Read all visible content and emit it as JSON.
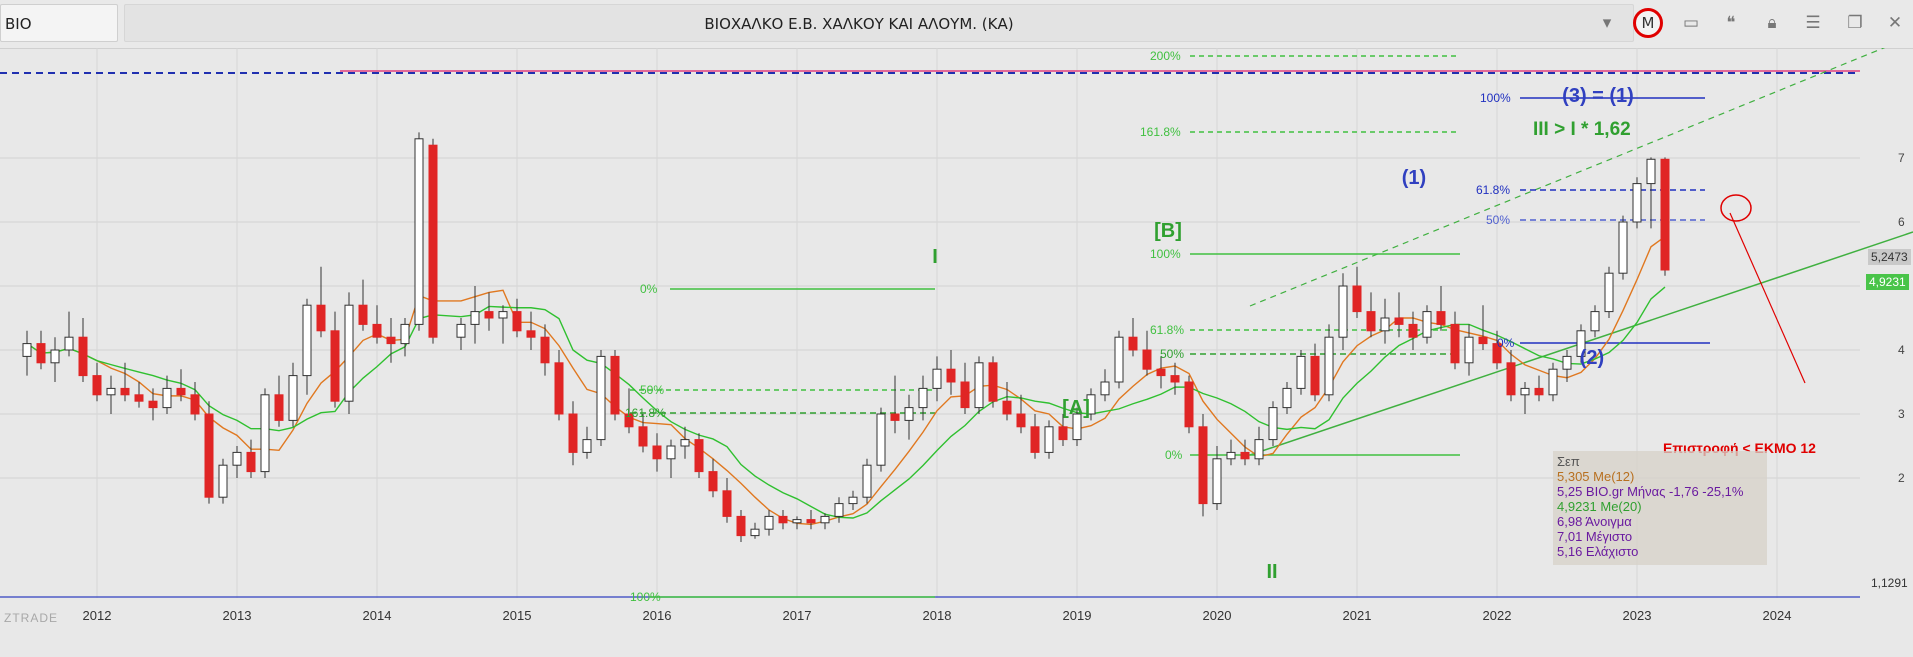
{
  "window": {
    "symbol": "BIO",
    "title": "ΒΙΟΧΑΛΚΟ Ε.Β. ΧΑΛΚΟΥ ΚΑΙ ΑΛΟΥΜ. (ΚΑ)",
    "icons": [
      "chevron-down-icon",
      "m-icon",
      "panel-icon",
      "quote-icon",
      "lock-icon",
      "menu-icon",
      "restore-icon",
      "close-icon"
    ],
    "m_label": "M",
    "watermark": "ZTRADE"
  },
  "chart_data": {
    "type": "candlestick",
    "interval": "monthly",
    "x_axis": {
      "range": [
        "2011-06",
        "2024-12"
      ],
      "ticks": [
        "2012",
        "2013",
        "2014",
        "2015",
        "2016",
        "2017",
        "2018",
        "2019",
        "2020",
        "2021",
        "2022",
        "2023",
        "2024"
      ]
    },
    "y_axis": {
      "range": [
        0.9,
        7.8
      ],
      "ticks": [
        "2",
        "3",
        "4",
        "5",
        "6",
        "7"
      ]
    },
    "colors": {
      "up": "#ffffff",
      "down": "#e02525",
      "ma12": "#e07820",
      "ma20": "#30c030",
      "annotation_blue": "#3030c0",
      "annotation_green": "#30a030",
      "accent_red": "#e00000"
    },
    "series": [
      {
        "name": "Me(12)",
        "last_value": "5,305"
      },
      {
        "name": "Me(20)",
        "last_value": "4,9231"
      }
    ],
    "candles": [
      [
        2011.5,
        3.9,
        4.3,
        3.6,
        4.1
      ],
      [
        2011.6,
        4.1,
        4.3,
        3.7,
        3.8
      ],
      [
        2011.7,
        3.8,
        4.2,
        3.5,
        4.0
      ],
      [
        2011.8,
        4.0,
        4.6,
        3.9,
        4.2
      ],
      [
        2011.9,
        4.2,
        4.5,
        3.5,
        3.6
      ],
      [
        2012.0,
        3.6,
        3.8,
        3.2,
        3.3
      ],
      [
        2012.1,
        3.3,
        3.6,
        3.0,
        3.4
      ],
      [
        2012.2,
        3.4,
        3.8,
        3.2,
        3.3
      ],
      [
        2012.3,
        3.3,
        3.5,
        3.1,
        3.2
      ],
      [
        2012.4,
        3.2,
        3.4,
        2.9,
        3.1
      ],
      [
        2012.5,
        3.1,
        3.6,
        3.0,
        3.4
      ],
      [
        2012.6,
        3.4,
        3.7,
        3.2,
        3.3
      ],
      [
        2012.7,
        3.3,
        3.5,
        2.9,
        3.0
      ],
      [
        2012.8,
        3.0,
        3.2,
        1.6,
        1.7
      ],
      [
        2012.9,
        1.7,
        2.3,
        1.6,
        2.2
      ],
      [
        2013.0,
        2.2,
        2.5,
        2.0,
        2.4
      ],
      [
        2013.1,
        2.4,
        2.6,
        2.0,
        2.1
      ],
      [
        2013.2,
        2.1,
        3.4,
        2.0,
        3.3
      ],
      [
        2013.3,
        3.3,
        3.6,
        2.8,
        2.9
      ],
      [
        2013.4,
        2.9,
        3.8,
        2.8,
        3.6
      ],
      [
        2013.5,
        3.6,
        4.8,
        3.3,
        4.7
      ],
      [
        2013.6,
        4.7,
        5.3,
        4.2,
        4.3
      ],
      [
        2013.7,
        4.3,
        4.6,
        3.1,
        3.2
      ],
      [
        2013.8,
        3.2,
        4.9,
        3.0,
        4.7
      ],
      [
        2013.9,
        4.7,
        5.1,
        4.3,
        4.4
      ],
      [
        2014.0,
        4.4,
        4.7,
        4.1,
        4.2
      ],
      [
        2014.1,
        4.2,
        4.5,
        3.8,
        4.1
      ],
      [
        2014.2,
        4.1,
        4.5,
        3.9,
        4.4
      ],
      [
        2014.3,
        4.4,
        7.4,
        4.3,
        7.3
      ],
      [
        2014.4,
        7.2,
        7.3,
        4.1,
        4.2
      ],
      [
        2014.6,
        4.2,
        4.5,
        4.0,
        4.4
      ],
      [
        2014.7,
        4.4,
        5.0,
        4.1,
        4.6
      ],
      [
        2014.8,
        4.6,
        4.9,
        4.3,
        4.5
      ],
      [
        2014.9,
        4.5,
        4.7,
        4.1,
        4.6
      ],
      [
        2015.0,
        4.6,
        4.8,
        4.2,
        4.3
      ],
      [
        2015.1,
        4.3,
        4.6,
        4.0,
        4.2
      ],
      [
        2015.2,
        4.2,
        4.4,
        3.6,
        3.8
      ],
      [
        2015.3,
        3.8,
        4.0,
        2.9,
        3.0
      ],
      [
        2015.4,
        3.0,
        3.2,
        2.2,
        2.4
      ],
      [
        2015.5,
        2.4,
        2.8,
        2.3,
        2.6
      ],
      [
        2015.6,
        2.6,
        4.0,
        2.5,
        3.9
      ],
      [
        2015.7,
        3.9,
        4.0,
        2.9,
        3.0
      ],
      [
        2015.8,
        3.0,
        3.4,
        2.7,
        2.8
      ],
      [
        2015.9,
        2.8,
        3.0,
        2.4,
        2.5
      ],
      [
        2016.0,
        2.5,
        2.7,
        2.1,
        2.3
      ],
      [
        2016.1,
        2.3,
        2.6,
        2.0,
        2.5
      ],
      [
        2016.2,
        2.5,
        2.8,
        2.3,
        2.6
      ],
      [
        2016.3,
        2.6,
        2.7,
        2.0,
        2.1
      ],
      [
        2016.4,
        2.1,
        2.3,
        1.7,
        1.8
      ],
      [
        2016.5,
        1.8,
        2.0,
        1.3,
        1.4
      ],
      [
        2016.6,
        1.4,
        1.5,
        1.0,
        1.1
      ],
      [
        2016.7,
        1.1,
        1.3,
        1.05,
        1.2
      ],
      [
        2016.8,
        1.2,
        1.5,
        1.1,
        1.4
      ],
      [
        2016.9,
        1.4,
        1.5,
        1.2,
        1.3
      ],
      [
        2017.0,
        1.3,
        1.4,
        1.2,
        1.35
      ],
      [
        2017.1,
        1.35,
        1.5,
        1.2,
        1.3
      ],
      [
        2017.2,
        1.3,
        1.45,
        1.2,
        1.4
      ],
      [
        2017.3,
        1.4,
        1.7,
        1.3,
        1.6
      ],
      [
        2017.4,
        1.6,
        1.8,
        1.5,
        1.7
      ],
      [
        2017.5,
        1.7,
        2.3,
        1.6,
        2.2
      ],
      [
        2017.6,
        2.2,
        3.1,
        2.1,
        3.0
      ],
      [
        2017.7,
        3.0,
        3.6,
        2.7,
        2.9
      ],
      [
        2017.8,
        2.9,
        3.3,
        2.6,
        3.1
      ],
      [
        2017.9,
        3.1,
        3.6,
        2.9,
        3.4
      ],
      [
        2018.0,
        3.4,
        3.9,
        3.2,
        3.7
      ],
      [
        2018.1,
        3.7,
        4.0,
        3.3,
        3.5
      ],
      [
        2018.2,
        3.5,
        3.8,
        3.0,
        3.1
      ],
      [
        2018.3,
        3.1,
        3.9,
        3.0,
        3.8
      ],
      [
        2018.4,
        3.8,
        3.9,
        3.1,
        3.2
      ],
      [
        2018.5,
        3.2,
        3.5,
        2.9,
        3.0
      ],
      [
        2018.6,
        3.0,
        3.3,
        2.7,
        2.8
      ],
      [
        2018.7,
        2.8,
        3.0,
        2.3,
        2.4
      ],
      [
        2018.8,
        2.4,
        2.9,
        2.3,
        2.8
      ],
      [
        2018.9,
        2.8,
        3.0,
        2.5,
        2.6
      ],
      [
        2019.0,
        2.6,
        3.1,
        2.5,
        3.0
      ],
      [
        2019.1,
        3.0,
        3.4,
        2.9,
        3.3
      ],
      [
        2019.2,
        3.3,
        3.7,
        3.2,
        3.5
      ],
      [
        2019.3,
        3.5,
        4.3,
        3.4,
        4.2
      ],
      [
        2019.4,
        4.2,
        4.5,
        3.9,
        4.0
      ],
      [
        2019.5,
        4.0,
        4.3,
        3.6,
        3.7
      ],
      [
        2019.6,
        3.7,
        3.9,
        3.4,
        3.6
      ],
      [
        2019.7,
        3.6,
        3.8,
        3.3,
        3.5
      ],
      [
        2019.8,
        3.5,
        3.6,
        2.7,
        2.8
      ],
      [
        2019.9,
        2.8,
        3.0,
        1.4,
        1.6
      ],
      [
        2020.0,
        1.6,
        2.5,
        1.5,
        2.3
      ],
      [
        2020.1,
        2.3,
        2.6,
        2.2,
        2.4
      ],
      [
        2020.2,
        2.4,
        2.6,
        2.2,
        2.3
      ],
      [
        2020.3,
        2.3,
        2.8,
        2.2,
        2.6
      ],
      [
        2020.4,
        2.6,
        3.2,
        2.5,
        3.1
      ],
      [
        2020.5,
        3.1,
        3.5,
        3.0,
        3.4
      ],
      [
        2020.6,
        3.4,
        4.0,
        3.3,
        3.9
      ],
      [
        2020.7,
        3.9,
        4.1,
        3.2,
        3.3
      ],
      [
        2020.8,
        3.3,
        4.4,
        3.2,
        4.2
      ],
      [
        2020.9,
        4.2,
        5.2,
        4.0,
        5.0
      ],
      [
        2021.0,
        5.0,
        5.3,
        4.5,
        4.6
      ],
      [
        2021.1,
        4.6,
        4.9,
        4.2,
        4.3
      ],
      [
        2021.2,
        4.3,
        4.8,
        4.1,
        4.5
      ],
      [
        2021.3,
        4.5,
        4.9,
        4.2,
        4.4
      ],
      [
        2021.4,
        4.4,
        4.6,
        4.0,
        4.2
      ],
      [
        2021.5,
        4.2,
        4.7,
        4.1,
        4.6
      ],
      [
        2021.6,
        4.6,
        5.0,
        4.3,
        4.4
      ],
      [
        2021.7,
        4.4,
        4.6,
        3.7,
        3.8
      ],
      [
        2021.8,
        3.8,
        4.4,
        3.6,
        4.2
      ],
      [
        2021.9,
        4.2,
        4.7,
        4.0,
        4.1
      ],
      [
        2022.0,
        4.1,
        4.3,
        3.7,
        3.8
      ],
      [
        2022.1,
        3.8,
        4.0,
        3.2,
        3.3
      ],
      [
        2022.2,
        3.3,
        3.5,
        3.0,
        3.4
      ],
      [
        2022.3,
        3.4,
        3.6,
        3.2,
        3.3
      ],
      [
        2022.4,
        3.3,
        3.8,
        3.2,
        3.7
      ],
      [
        2022.5,
        3.7,
        4.0,
        3.5,
        3.9
      ],
      [
        2022.6,
        3.9,
        4.4,
        3.8,
        4.3
      ],
      [
        2022.7,
        4.3,
        4.7,
        4.2,
        4.6
      ],
      [
        2022.8,
        4.6,
        5.3,
        4.5,
        5.2
      ],
      [
        2022.9,
        5.2,
        6.1,
        5.1,
        6.0
      ],
      [
        2023.0,
        6.0,
        6.7,
        5.9,
        6.6
      ],
      [
        2023.1,
        6.6,
        7.01,
        5.9,
        6.98
      ],
      [
        2023.2,
        6.98,
        7.01,
        5.16,
        5.25
      ]
    ],
    "annotations": {
      "fibonacci_levels": [
        "0%",
        "100%",
        "50%",
        "61.8%",
        "161.8%",
        "200%"
      ],
      "wave_labels": [
        "I",
        "II",
        "[A]",
        "[B]",
        "(1)",
        "(2)",
        "(3) = (1)"
      ],
      "texts": [
        "III > I * 1,62",
        "Επιστροφή < ΕΚΜΟ 12"
      ]
    },
    "price_tags": [
      "5,2473",
      "4,9231",
      "1,1291"
    ],
    "legend": {
      "title": "Σεπ",
      "rows": [
        {
          "text": "5,305 Me(12)",
          "color": "#b87020"
        },
        {
          "text": "5,25 BIO.gr Μήνας -1,76 -25,1%",
          "color": "#6a1aa0"
        },
        {
          "text": "4,9231 Me(20)",
          "color": "#30a030"
        },
        {
          "text": "6,98 Άνοιγμα",
          "color": "#6a1aa0"
        },
        {
          "text": "7,01 Μέγιστο",
          "color": "#6a1aa0"
        },
        {
          "text": "5,16 Ελάχιστο",
          "color": "#6a1aa0"
        }
      ]
    }
  }
}
